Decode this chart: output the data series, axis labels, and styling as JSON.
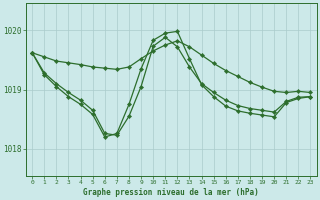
{
  "xlabel": "Graphe pression niveau de la mer (hPa)",
  "background_color": "#cce9e9",
  "grid_color": "#aacccc",
  "line_color": "#2d6e2d",
  "xlim": [
    -0.5,
    23.5
  ],
  "ylim": [
    1017.55,
    1020.45
  ],
  "yticks": [
    1018,
    1019,
    1020
  ],
  "xticks": [
    0,
    1,
    2,
    3,
    4,
    5,
    6,
    7,
    8,
    9,
    10,
    11,
    12,
    13,
    14,
    15,
    16,
    17,
    18,
    19,
    20,
    21,
    22,
    23
  ],
  "line1_x": [
    0,
    1,
    2,
    3,
    4,
    5,
    6,
    7,
    8,
    9,
    10,
    11,
    12,
    13,
    14,
    15,
    16,
    17,
    18,
    19,
    20,
    21,
    22,
    23
  ],
  "line1_y": [
    1019.62,
    1019.55,
    1019.48,
    1019.45,
    1019.42,
    1019.38,
    1019.36,
    1019.34,
    1019.38,
    1019.52,
    1019.65,
    1019.75,
    1019.82,
    1019.72,
    1019.58,
    1019.44,
    1019.32,
    1019.22,
    1019.12,
    1019.04,
    1018.97,
    1018.95,
    1018.97,
    1018.95
  ],
  "line2_x": [
    0,
    1,
    2,
    3,
    4,
    5,
    6,
    7,
    8,
    9,
    10,
    11,
    12,
    13,
    14,
    15,
    16,
    17,
    18,
    19,
    20,
    21,
    22,
    23
  ],
  "line2_y": [
    1019.62,
    1019.28,
    1019.1,
    1018.95,
    1018.82,
    1018.65,
    1018.26,
    1018.23,
    1018.55,
    1019.05,
    1019.73,
    1019.88,
    1019.72,
    1019.38,
    1019.1,
    1018.95,
    1018.82,
    1018.73,
    1018.68,
    1018.65,
    1018.62,
    1018.8,
    1018.87,
    1018.88
  ],
  "line3_x": [
    0,
    1,
    2,
    3,
    4,
    5,
    6,
    7,
    8,
    9,
    10,
    11,
    12,
    13,
    14,
    15,
    16,
    17,
    18,
    19,
    20,
    21,
    22,
    23
  ],
  "line3_y": [
    1019.62,
    1019.25,
    1019.05,
    1018.88,
    1018.75,
    1018.58,
    1018.2,
    1018.26,
    1018.75,
    1019.35,
    1019.83,
    1019.95,
    1019.98,
    1019.52,
    1019.08,
    1018.88,
    1018.72,
    1018.64,
    1018.6,
    1018.57,
    1018.54,
    1018.78,
    1018.85,
    1018.88
  ]
}
